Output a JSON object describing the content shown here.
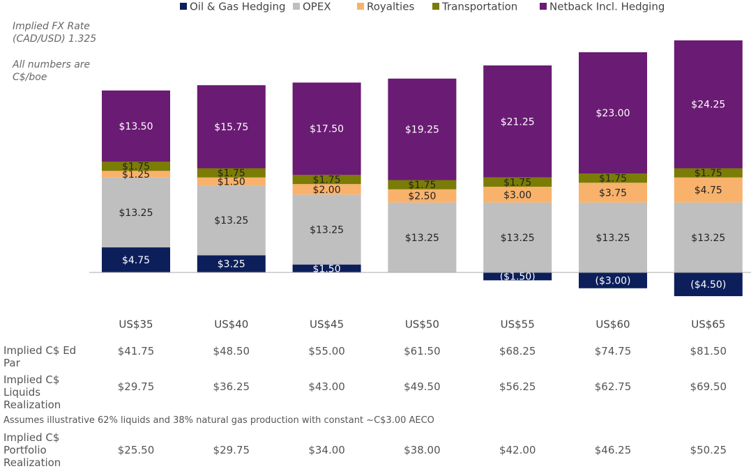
{
  "chart_data": {
    "type": "bar",
    "stacked": true,
    "categories": [
      "US$35",
      "US$40",
      "US$45",
      "US$50",
      "US$55",
      "US$60",
      "US$65"
    ],
    "series": [
      {
        "name": "Oil & Gas Hedging",
        "color": "#0c1f5b",
        "values": [
          4.75,
          3.25,
          1.5,
          null,
          -1.5,
          -3.0,
          -4.5
        ],
        "value_labels": [
          "$4.75",
          "$3.25",
          "$1.50",
          null,
          "($1.50)",
          "($3.00)",
          "($4.50)"
        ]
      },
      {
        "name": "OPEX",
        "color": "#bfbfbf",
        "values": [
          13.25,
          13.25,
          13.25,
          13.25,
          13.25,
          13.25,
          13.25
        ],
        "value_labels": [
          "$13.25",
          "$13.25",
          "$13.25",
          "$13.25",
          "$13.25",
          "$13.25",
          "$13.25"
        ]
      },
      {
        "name": "Royalties",
        "color": "#f8b26c",
        "values": [
          1.25,
          1.5,
          2.0,
          2.5,
          3.0,
          3.75,
          4.75
        ],
        "value_labels": [
          "$1.25",
          "$1.50",
          "$2.00",
          "$2.50",
          "$3.00",
          "$3.75",
          "$4.75"
        ]
      },
      {
        "name": "Transportation",
        "color": "#7b7c05",
        "values": [
          1.75,
          1.75,
          1.75,
          1.75,
          1.75,
          1.75,
          1.75
        ],
        "value_labels": [
          "$1.75",
          "$1.75",
          "$1.75",
          "$1.75",
          "$1.75",
          "$1.75",
          "$1.75"
        ]
      },
      {
        "name": "Netback Incl. Hedging",
        "color": "#6a1b73",
        "values": [
          13.5,
          15.75,
          17.5,
          19.25,
          21.25,
          23.0,
          24.25
        ],
        "value_labels": [
          "$13.50",
          "$15.75",
          "$17.50",
          "$19.25",
          "$21.25",
          "$23.00",
          "$24.25"
        ]
      }
    ]
  },
  "notes": [
    "Implied FX Rate (CAD/USD) 1.325",
    "All numbers are C$/boe"
  ],
  "table": {
    "rows": [
      {
        "label": "Implied C$ Ed Par",
        "values": [
          "$41.75",
          "$48.50",
          "$55.00",
          "$61.50",
          "$68.25",
          "$74.75",
          "$81.50"
        ]
      },
      {
        "label": "Implied C$ Liquids Realization",
        "values": [
          "$29.75",
          "$36.25",
          "$43.00",
          "$49.50",
          "$56.25",
          "$62.75",
          "$69.50"
        ]
      },
      {
        "label": "Implied C$ Portfolio Realization",
        "values": [
          "$25.50",
          "$29.75",
          "$34.00",
          "$38.00",
          "$42.00",
          "$46.25",
          "$50.25"
        ]
      }
    ],
    "footnote": "Assumes illustrative 62% liquids and 38% natural gas production with constant ~C$3.00 AECO"
  }
}
